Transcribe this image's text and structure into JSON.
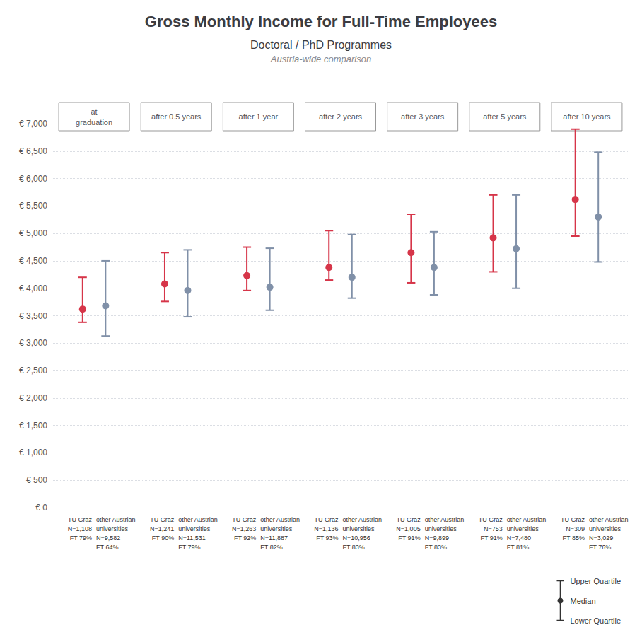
{
  "chart_data": {
    "type": "errorbar",
    "title": "Gross Monthly Income for Full-Time Employees",
    "subtitle": "Doctoral / PhD Programmes",
    "subtitle2": "Austria-wide comparison",
    "categories": [
      "at\ngraduation",
      "after 0.5 years",
      "after 1 year",
      "after 2 years",
      "after 3 years",
      "after 5 years",
      "after 10 years"
    ],
    "series": [
      {
        "name": "TU Graz",
        "color": "#d63549",
        "values": [
          3620,
          4080,
          4230,
          4380,
          4650,
          4920,
          5620
        ],
        "lower_quartile": [
          3380,
          3760,
          3960,
          4150,
          4100,
          4300,
          4950
        ],
        "upper_quartile": [
          4200,
          4650,
          4750,
          5050,
          5350,
          5700,
          6900
        ],
        "point_labels": [
          [
            "TU Graz",
            "N=1,108",
            "FT 79%"
          ],
          [
            "TU Graz",
            "N=1,241",
            "FT 90%"
          ],
          [
            "TU Graz",
            "N=1,263",
            "FT 92%"
          ],
          [
            "TU Graz",
            "N=1,136",
            "FT 93%"
          ],
          [
            "TU Graz",
            "N=1,005",
            "FT 91%"
          ],
          [
            "TU Graz",
            "N=753",
            "FT 91%"
          ],
          [
            "TU Graz",
            "N=309",
            "FT 85%"
          ]
        ]
      },
      {
        "name": "other Austrian universities",
        "color": "#8090a8",
        "values": [
          3680,
          3960,
          4020,
          4200,
          4380,
          4720,
          5300
        ],
        "lower_quartile": [
          3130,
          3480,
          3600,
          3820,
          3880,
          4000,
          4480
        ],
        "upper_quartile": [
          4500,
          4700,
          4730,
          4980,
          5030,
          5700,
          6480
        ],
        "point_labels": [
          [
            "other Austrian",
            "universities",
            "N=9,582",
            "FT 64%"
          ],
          [
            "other Austrian",
            "universities",
            "N=11,531",
            "FT 79%"
          ],
          [
            "other Austrian",
            "universities",
            "N=11,887",
            "FT 82%"
          ],
          [
            "other Austrian",
            "universities",
            "N=10,956",
            "FT 83%"
          ],
          [
            "other Austrian",
            "universities",
            "N=9,899",
            "FT 83%"
          ],
          [
            "other Austrian",
            "universities",
            "N=7,480",
            "FT 81%"
          ],
          [
            "other Austrian",
            "universities",
            "N=3,029",
            "FT 76%"
          ]
        ]
      }
    ],
    "ylim": [
      0,
      7000
    ],
    "yticks": [
      {
        "value": 0,
        "label": "€ 0"
      },
      {
        "value": 500,
        "label": "€ 500"
      },
      {
        "value": 1000,
        "label": "€ 1,000"
      },
      {
        "value": 1500,
        "label": "€ 1,500"
      },
      {
        "value": 2000,
        "label": "€ 2,000"
      },
      {
        "value": 2500,
        "label": "€ 2,500"
      },
      {
        "value": 3000,
        "label": "€ 3,000"
      },
      {
        "value": 3500,
        "label": "€ 3,500"
      },
      {
        "value": 4000,
        "label": "€ 4,000"
      },
      {
        "value": 4500,
        "label": "€ 4,500"
      },
      {
        "value": 5000,
        "label": "€ 5,000"
      },
      {
        "value": 5500,
        "label": "€ 5,500"
      },
      {
        "value": 6000,
        "label": "€ 6,000"
      },
      {
        "value": 6500,
        "label": "€ 6,500"
      },
      {
        "value": 7000,
        "label": "€ 7,000"
      }
    ],
    "grid": true,
    "annotations": [
      "Upper Quartile",
      "Median",
      "Lower Quartile"
    ]
  }
}
